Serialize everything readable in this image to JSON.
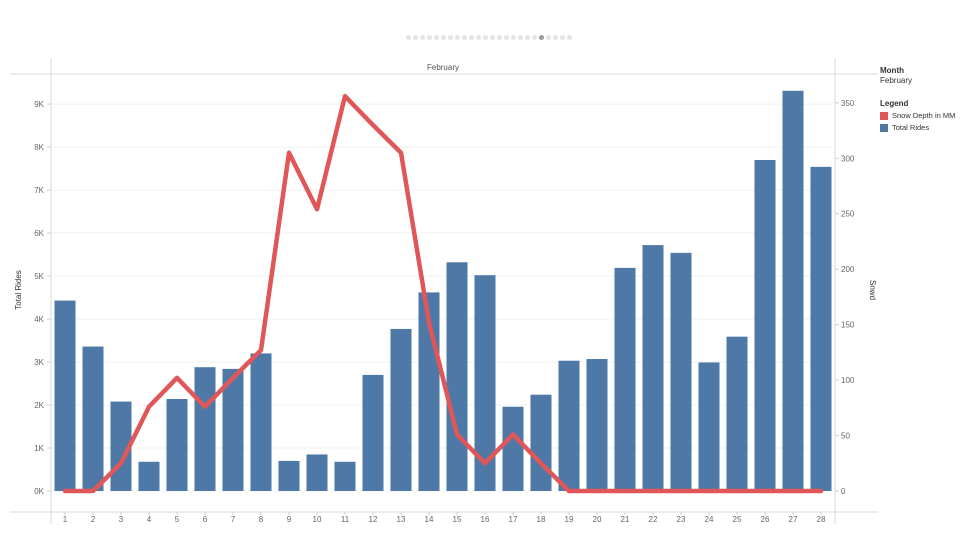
{
  "pager": {
    "count": 24,
    "active": 19
  },
  "header": {
    "month_value": "February"
  },
  "legend": {
    "month_title": "Month",
    "month_value": "February",
    "title": "Legend",
    "items": [
      {
        "label": "Snow Depth in MM",
        "color": "#e05759"
      },
      {
        "label": "Total Rides",
        "color": "#4e79a7"
      }
    ]
  },
  "chart_data": {
    "type": "bar",
    "xlabel": "",
    "ylabel": "Total Rides",
    "y2label": "Snwd",
    "categories": [
      "1",
      "2",
      "3",
      "4",
      "5",
      "6",
      "7",
      "8",
      "9",
      "10",
      "11",
      "12",
      "13",
      "14",
      "15",
      "16",
      "17",
      "18",
      "19",
      "20",
      "21",
      "22",
      "23",
      "24",
      "25",
      "26",
      "27",
      "28"
    ],
    "ylim": [
      0,
      9700
    ],
    "yticks": [
      0,
      1000,
      2000,
      3000,
      4000,
      5000,
      6000,
      7000,
      8000,
      9000
    ],
    "ytick_labels": [
      "0K",
      "1K",
      "2K",
      "3K",
      "4K",
      "5K",
      "6K",
      "7K",
      "8K",
      "9K"
    ],
    "y2lim": [
      0,
      376
    ],
    "y2ticks": [
      0,
      50,
      100,
      150,
      200,
      250,
      300,
      350
    ],
    "y2tick_labels": [
      "0",
      "50",
      "100",
      "150",
      "200",
      "250",
      "300",
      "350"
    ],
    "grid": true,
    "legend_position": "right",
    "series": [
      {
        "name": "Total Rides",
        "type": "bar",
        "color": "#4e79a7",
        "axis": "left",
        "values": [
          4430,
          3360,
          2080,
          680,
          2140,
          2880,
          2840,
          3200,
          700,
          850,
          680,
          2700,
          3770,
          4620,
          5320,
          5020,
          1960,
          2240,
          3030,
          3070,
          5190,
          5720,
          5540,
          2990,
          3590,
          7700,
          9310,
          7540
        ]
      },
      {
        "name": "Snow Depth in MM",
        "type": "line",
        "color": "#e05759",
        "axis": "right",
        "values": [
          0,
          0,
          25,
          76,
          102,
          76,
          102,
          127,
          305,
          254,
          356,
          330,
          305,
          152,
          51,
          25,
          51,
          25,
          0,
          0,
          0,
          0,
          0,
          0,
          0,
          0,
          0,
          0
        ]
      }
    ]
  }
}
